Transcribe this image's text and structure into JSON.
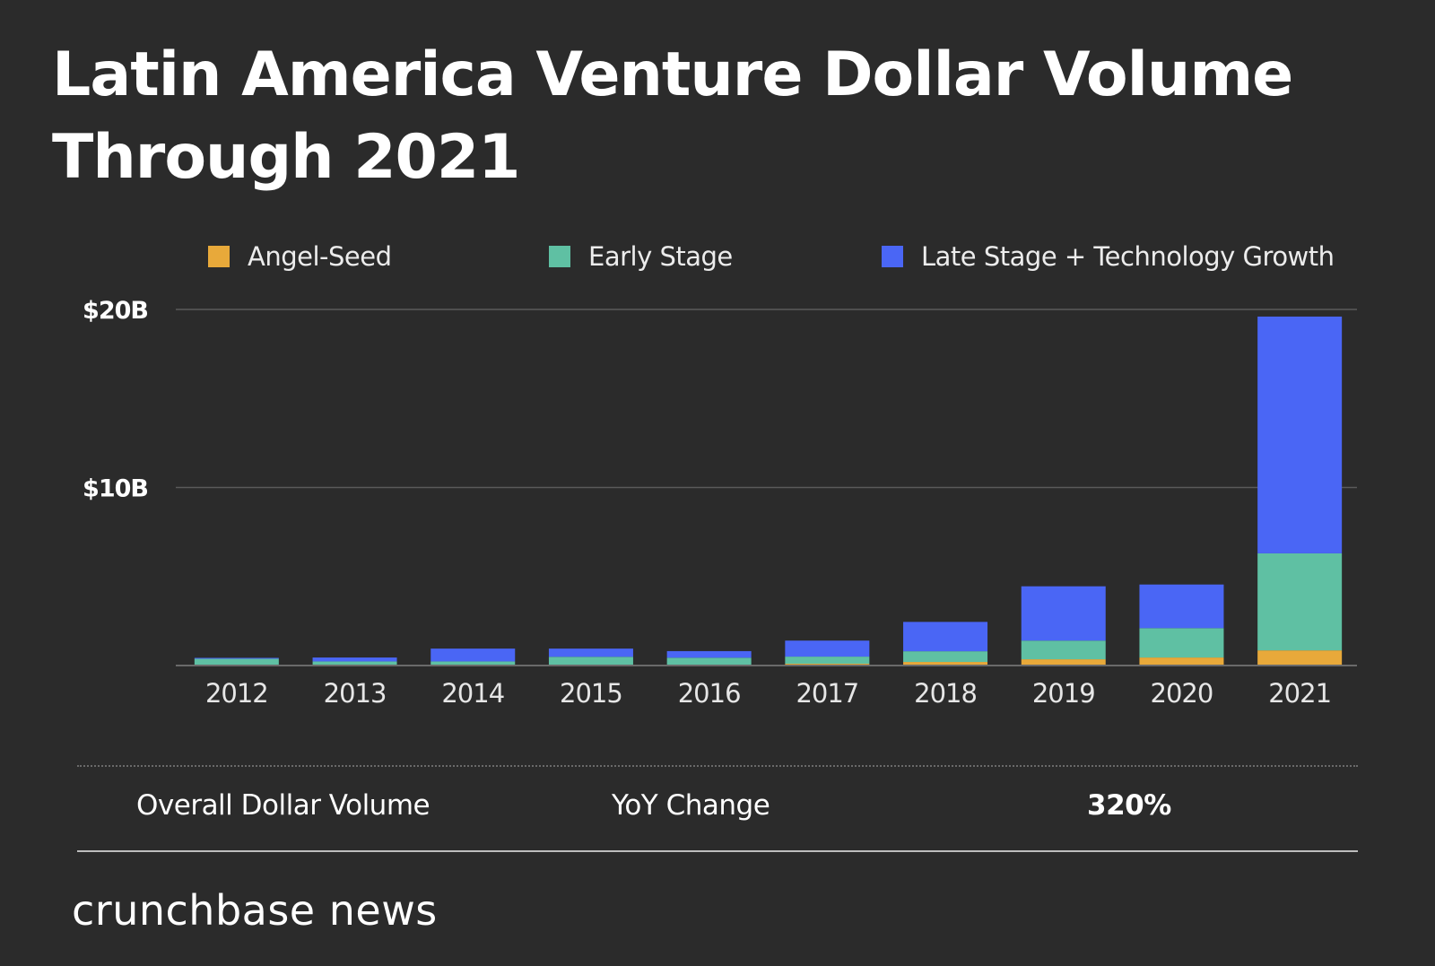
{
  "header": {
    "title_line1": "Latin America Venture Dollar Volume",
    "title_line2": "Through 2021"
  },
  "legend": [
    {
      "label": "Angel-Seed",
      "color": "#e8a93a"
    },
    {
      "label": "Early Stage",
      "color": "#5fc0a3"
    },
    {
      "label": "Late Stage + Technology Growth",
      "color": "#4a66f5"
    }
  ],
  "chart_data": {
    "type": "bar",
    "stacked": true,
    "title": "Latin America Venture Dollar Volume Through 2021",
    "xlabel": "",
    "ylabel": "",
    "ylim": [
      0,
      20
    ],
    "yunit": "USD billions",
    "yticks": [
      {
        "value": 10,
        "label": "$10B"
      },
      {
        "value": 20,
        "label": "$20B"
      }
    ],
    "grid": true,
    "legend_position": "top",
    "categories": [
      "2012",
      "2013",
      "2014",
      "2015",
      "2016",
      "2017",
      "2018",
      "2019",
      "2020",
      "2021"
    ],
    "series": [
      {
        "name": "Angel-Seed",
        "color": "#e8a93a",
        "values": [
          0.03,
          0.03,
          0.03,
          0.04,
          0.04,
          0.1,
          0.2,
          0.35,
          0.45,
          0.85
        ]
      },
      {
        "name": "Early Stage",
        "color": "#5fc0a3",
        "values": [
          0.35,
          0.2,
          0.2,
          0.45,
          0.4,
          0.4,
          0.6,
          1.05,
          1.65,
          5.45
        ]
      },
      {
        "name": "Late Stage + Technology Growth",
        "color": "#4a66f5",
        "values": [
          0.05,
          0.22,
          0.72,
          0.46,
          0.37,
          0.9,
          1.65,
          3.05,
          2.45,
          13.3
        ]
      }
    ]
  },
  "summary": {
    "metric_label": "Overall Dollar Volume",
    "change_label": "YoY Change",
    "change_value": "320%"
  },
  "brand": "crunchbase news"
}
